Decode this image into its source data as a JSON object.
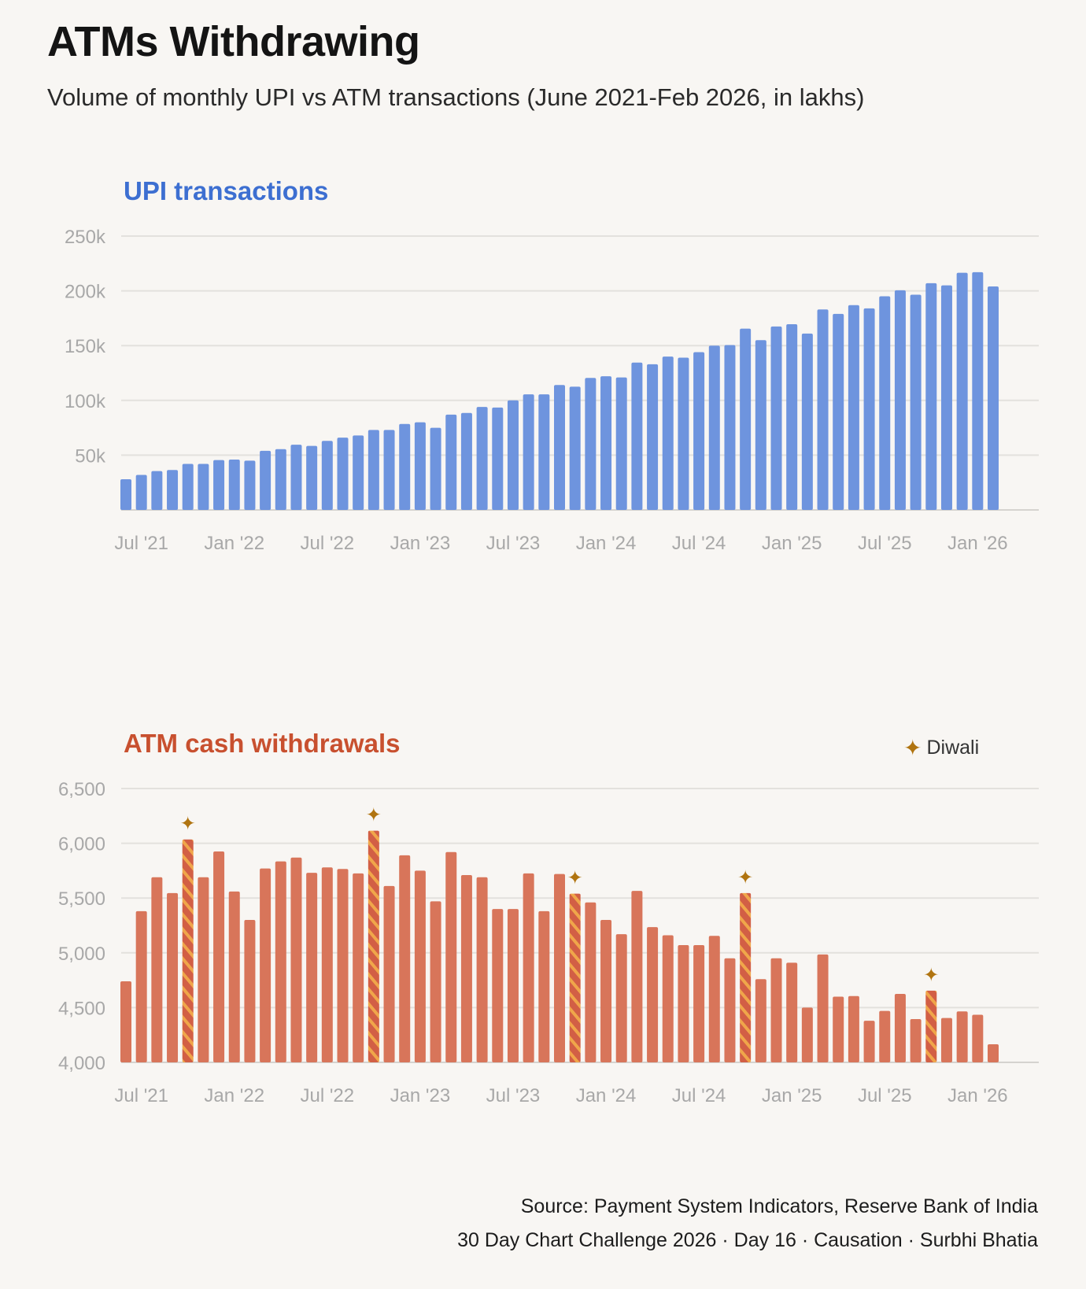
{
  "title": "ATMs Withdrawing",
  "subtitle": "Volume of monthly UPI vs ATM transactions (June 2021-Feb 2026, in lakhs)",
  "legend": {
    "symbol": "✦",
    "label": "Diwali",
    "color": "#b07410"
  },
  "source_line1": "Source: Payment System Indicators, Reserve Bank of India",
  "source_line2": "30 Day Chart Challenge 2026 · Day 16 · Causation · Surbhi Bhatia",
  "colors": {
    "upi": "#6e94de",
    "atm": "#d8755a",
    "diwali_stripe": "#f0a64a",
    "accent_upi_title": "#3d6fd1",
    "accent_atm_title": "#c8502f"
  },
  "chart_data": [
    {
      "type": "bar",
      "title": "UPI transactions",
      "x_start": "2021-06",
      "x_end": "2026-02",
      "x_tick_labels": [
        "Jul '21",
        "Jan '22",
        "Jul '22",
        "Jan '23",
        "Jul '23",
        "Jan '24",
        "Jul '24",
        "Jan '25",
        "Jul '25",
        "Jan '26"
      ],
      "y_tick_labels": [
        "50k",
        "100k",
        "150k",
        "200k",
        "250k"
      ],
      "y_ticks": [
        50000,
        100000,
        150000,
        200000,
        250000
      ],
      "ylim": [
        0,
        250000
      ],
      "grid": true,
      "values": [
        28000,
        32000,
        35500,
        36500,
        42000,
        42000,
        45500,
        46000,
        45000,
        54000,
        55500,
        59500,
        58500,
        63000,
        66000,
        68000,
        73000,
        73000,
        78500,
        80000,
        75000,
        87000,
        88500,
        94000,
        93500,
        100000,
        105500,
        105500,
        114000,
        112500,
        120500,
        122000,
        121000,
        134500,
        133000,
        140000,
        139000,
        144000,
        150000,
        150500,
        165500,
        155000,
        167500,
        169500,
        161000,
        183000,
        179000,
        187000,
        184000,
        195000,
        200500,
        196500,
        207000,
        205000,
        216500,
        217000,
        204000
      ]
    },
    {
      "type": "bar",
      "title": "ATM cash withdrawals",
      "x_start": "2021-06",
      "x_end": "2026-02",
      "x_tick_labels": [
        "Jul '21",
        "Jan '22",
        "Jul '22",
        "Jan '23",
        "Jul '23",
        "Jan '24",
        "Jul '24",
        "Jan '25",
        "Jul '25",
        "Jan '26"
      ],
      "y_tick_labels": [
        "4,000",
        "4,500",
        "5,000",
        "5,500",
        "6,000",
        "6,500"
      ],
      "y_ticks": [
        4000,
        4500,
        5000,
        5500,
        6000,
        6500
      ],
      "ylim": [
        4000,
        6500
      ],
      "grid": true,
      "legend_placement": "top-right",
      "values": [
        4740,
        5380,
        5690,
        5545,
        6035,
        5690,
        5925,
        5560,
        5300,
        5770,
        5835,
        5870,
        5730,
        5780,
        5765,
        5725,
        6115,
        5610,
        5890,
        5750,
        5470,
        5920,
        5710,
        5690,
        5400,
        5400,
        5725,
        5380,
        5720,
        5540,
        5460,
        5300,
        5170,
        5565,
        5235,
        5160,
        5070,
        5070,
        5155,
        4950,
        5545,
        4760,
        4950,
        4910,
        4500,
        4985,
        4600,
        4605,
        4380,
        4470,
        4625,
        4395,
        4655,
        4405,
        4465,
        4435,
        4165
      ],
      "diwali_months": [
        "2021-10",
        "2022-10",
        "2023-11",
        "2024-10",
        "2025-10"
      ]
    }
  ]
}
